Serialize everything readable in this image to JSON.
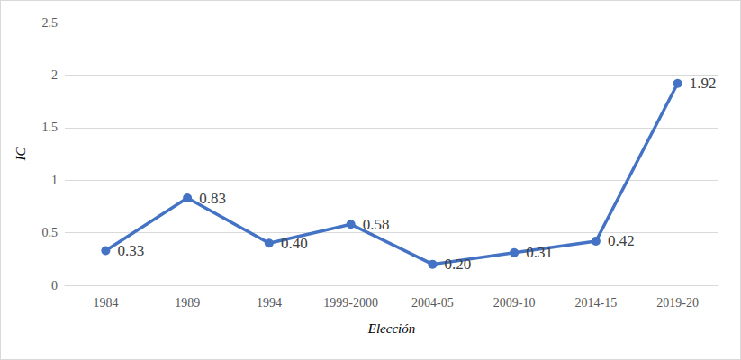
{
  "chart_data": {
    "type": "line",
    "x_label": "Elección",
    "y_label": "IC",
    "categories": [
      "1984",
      "1989",
      "1994",
      "1999-2000",
      "2004-05",
      "2009-10",
      "2014-15",
      "2019-20"
    ],
    "values": [
      0.33,
      0.83,
      0.4,
      0.58,
      0.2,
      0.31,
      0.42,
      1.92
    ],
    "value_labels": [
      "0.33",
      "0.83",
      "0.40",
      "0.58",
      "0.20",
      "0.31",
      "0.42",
      "1.92"
    ],
    "color": "#4472c4",
    "marker": "circle",
    "ylim": [
      0,
      2.5
    ],
    "yticks": [
      0,
      0.5,
      1,
      1.5,
      2,
      2.5
    ],
    "grid": true,
    "data_labels": true
  }
}
